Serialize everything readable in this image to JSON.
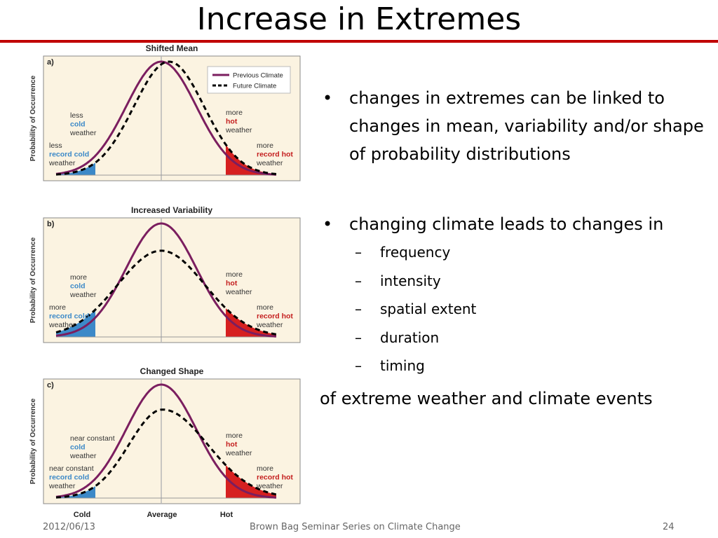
{
  "title": "Increase in Extremes",
  "bullets": [
    "changes in extremes can be linked to changes in mean, variability and/or shape of probability distributions",
    "changing climate leads to changes in"
  ],
  "sub_bullets": [
    "frequency",
    "intensity",
    "spatial extent",
    "duration",
    "timing"
  ],
  "closing_text": "of extreme weather and climate events",
  "footer": {
    "date": "2012/06/13",
    "center": "Brown Bag Seminar Series on Climate Change",
    "page": "24"
  },
  "figure": {
    "ylabel": "Probability of Occurrence",
    "x_axis_labels": [
      "Cold",
      "Average",
      "Hot"
    ],
    "legend": {
      "previous": "Previous Climate",
      "future": "Future Climate"
    },
    "colors": {
      "previous": "#7b1e5f",
      "future": "#000000",
      "cold_fill": "#3c89c8",
      "hot_fill": "#d62020",
      "cold_text": "#3c89c8",
      "hot_text": "#c41e1e",
      "bg": "#fbf3e1"
    },
    "panels": [
      {
        "letter": "a)",
        "title": "Shifted Mean",
        "labels": {
          "cold_upper": [
            "less",
            "cold",
            "weather"
          ],
          "cold_lower": [
            "less",
            "record cold",
            "weather"
          ],
          "hot_upper": [
            "more",
            "hot",
            "weather"
          ],
          "hot_lower": [
            "more",
            "record hot",
            "weather"
          ]
        }
      },
      {
        "letter": "b)",
        "title": "Increased Variability",
        "labels": {
          "cold_upper": [
            "more",
            "cold",
            "weather"
          ],
          "cold_lower": [
            "more",
            "record cold",
            "weather"
          ],
          "hot_upper": [
            "more",
            "hot",
            "weather"
          ],
          "hot_lower": [
            "more",
            "record hot",
            "weather"
          ]
        }
      },
      {
        "letter": "c)",
        "title": "Changed Shape",
        "labels": {
          "cold_upper": [
            "near constant",
            "cold",
            "weather"
          ],
          "cold_lower": [
            "near constant",
            "record cold",
            "weather"
          ],
          "hot_upper": [
            "more",
            "hot",
            "weather"
          ],
          "hot_lower": [
            "more",
            "record hot",
            "weather"
          ]
        }
      }
    ]
  }
}
